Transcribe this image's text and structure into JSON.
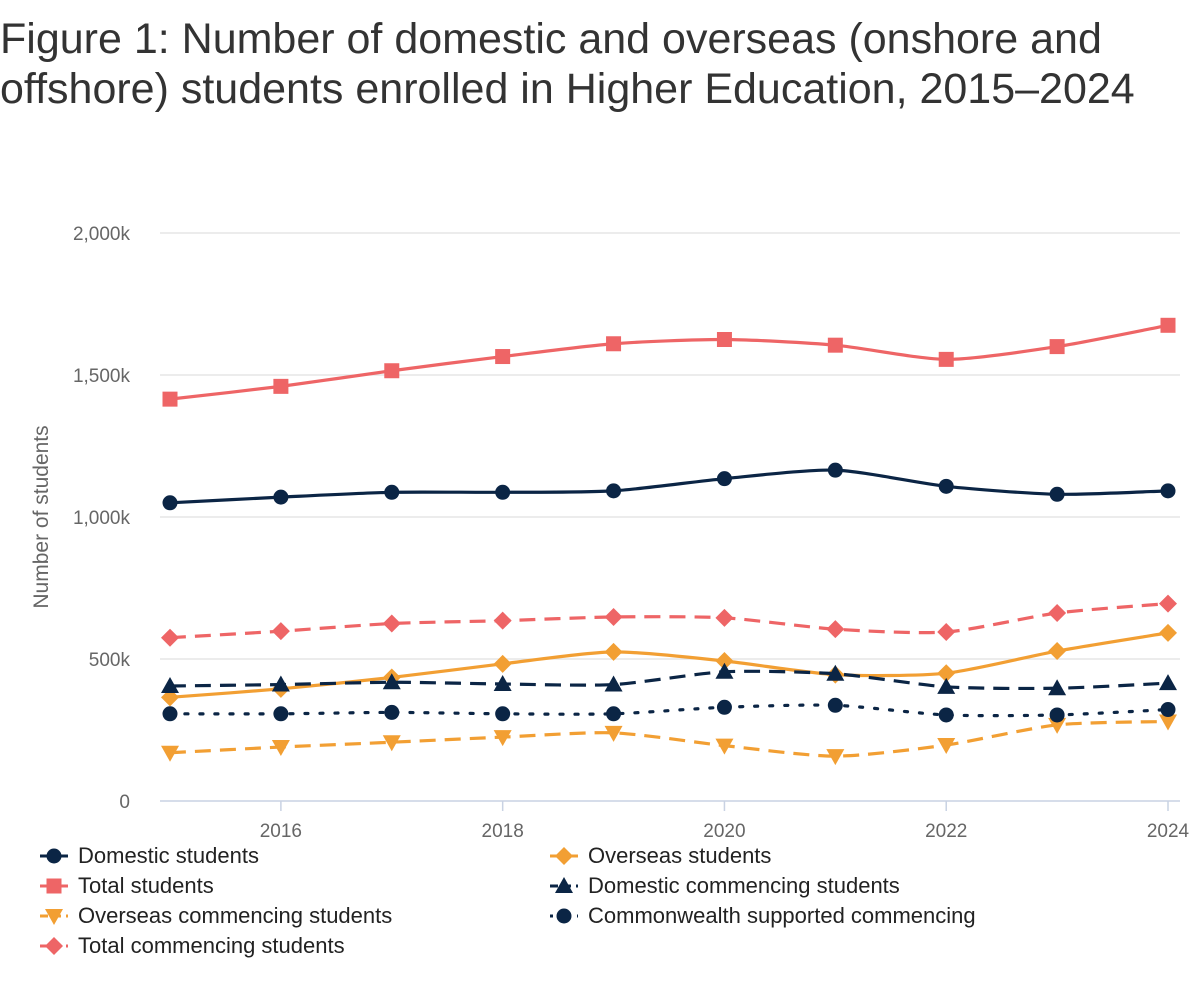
{
  "title": "Figure 1: Number of domestic and overseas (onshore and offshore) students enrolled in Higher Education, 2015–2024",
  "chart_data": {
    "type": "line",
    "title": "Figure 1: Number of domestic and overseas (onshore and offshore) students enrolled in Higher Education, 2015–2024",
    "xlabel": "",
    "ylabel": "Number of students",
    "x": [
      2015,
      2016,
      2017,
      2018,
      2019,
      2020,
      2021,
      2022,
      2023,
      2024
    ],
    "xticks": [
      "2016",
      "2018",
      "2020",
      "2022",
      "2024"
    ],
    "yticks": [
      "0",
      "500k",
      "1,000k",
      "1,500k",
      "2,000k"
    ],
    "ylim": [
      0,
      2000000
    ],
    "grid": true,
    "legend_position": "bottom",
    "series": [
      {
        "name": "Domestic students",
        "color": "#0b2545",
        "dash": "solid",
        "marker": "circle",
        "values": [
          1050000,
          1070000,
          1087000,
          1087000,
          1092000,
          1135000,
          1165000,
          1108000,
          1080000,
          1092000
        ]
      },
      {
        "name": "Overseas students",
        "color": "#f29f33",
        "dash": "solid",
        "marker": "diamond",
        "values": [
          365000,
          395000,
          435000,
          483000,
          525000,
          493000,
          445000,
          450000,
          528000,
          592000
        ]
      },
      {
        "name": "Total students",
        "color": "#ee6566",
        "dash": "solid",
        "marker": "square",
        "values": [
          1415000,
          1460000,
          1515000,
          1565000,
          1610000,
          1625000,
          1605000,
          1555000,
          1600000,
          1675000
        ]
      },
      {
        "name": "Domestic commencing students",
        "color": "#0b2545",
        "dash": "dash",
        "marker": "triangle-up",
        "values": [
          405000,
          410000,
          418000,
          412000,
          410000,
          455000,
          448000,
          402000,
          397000,
          415000
        ]
      },
      {
        "name": "Overseas commencing students",
        "color": "#f29f33",
        "dash": "dash",
        "marker": "triangle-down",
        "values": [
          170000,
          190000,
          207000,
          225000,
          240000,
          195000,
          158000,
          197000,
          268000,
          280000
        ]
      },
      {
        "name": "Commonwealth supported commencing",
        "color": "#0b2545",
        "dash": "dot",
        "marker": "circle",
        "values": [
          307000,
          307000,
          312000,
          307000,
          307000,
          330000,
          337000,
          303000,
          303000,
          322000
        ]
      },
      {
        "name": "Total commencing students",
        "color": "#ee6566",
        "dash": "dash",
        "marker": "diamond",
        "values": [
          575000,
          598000,
          625000,
          635000,
          648000,
          645000,
          605000,
          595000,
          662000,
          695000
        ]
      }
    ]
  }
}
